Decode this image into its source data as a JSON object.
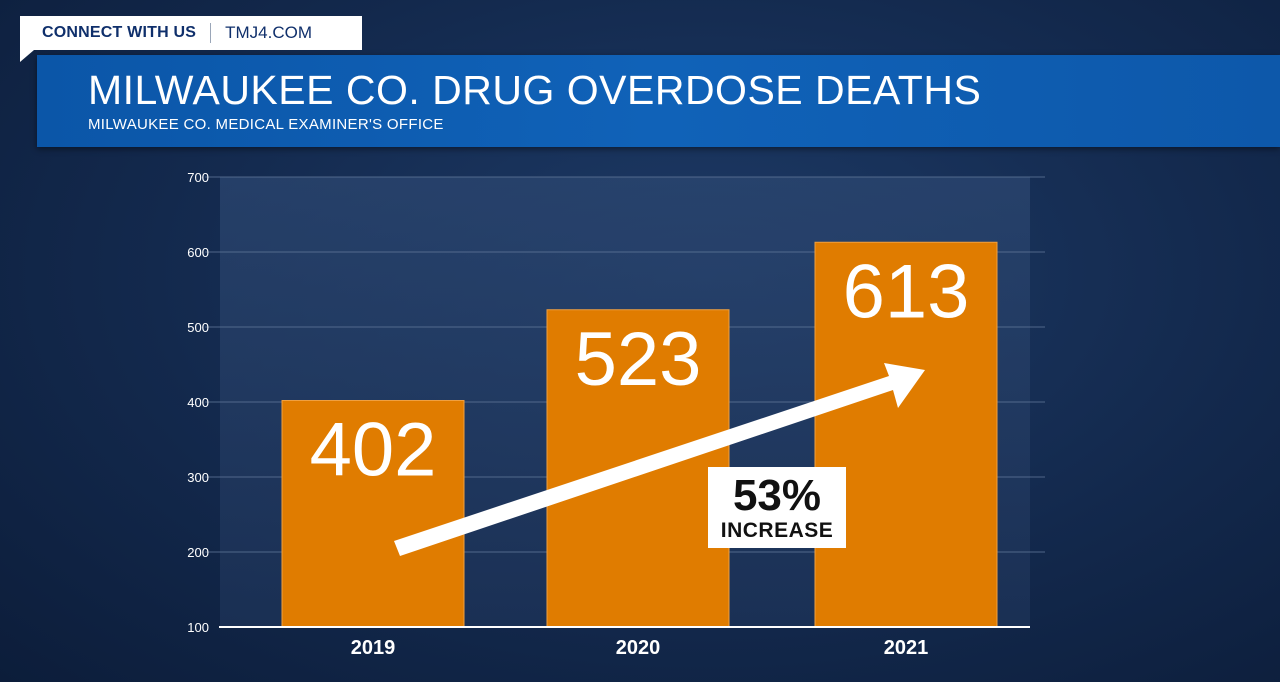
{
  "header": {
    "connect_label": "CONNECT WITH US",
    "site_label": "TMJ4.COM"
  },
  "chart_data": {
    "type": "bar",
    "title": "MILWAUKEE CO. DRUG OVERDOSE DEATHS",
    "subtitle": "MILWAUKEE CO. MEDICAL EXAMINER'S OFFICE",
    "categories": [
      "2019",
      "2020",
      "2021"
    ],
    "values": [
      402,
      523,
      613
    ],
    "data_labels": [
      "402",
      "523",
      "613"
    ],
    "yticks": [
      "100",
      "200",
      "300",
      "400",
      "500",
      "600",
      "700"
    ],
    "ylim": [
      100,
      700
    ],
    "xlabel": "",
    "ylabel": "",
    "grid": true,
    "bar_color": "#e07c00",
    "annotation": {
      "percent": "53%",
      "word": "INCREASE"
    }
  }
}
